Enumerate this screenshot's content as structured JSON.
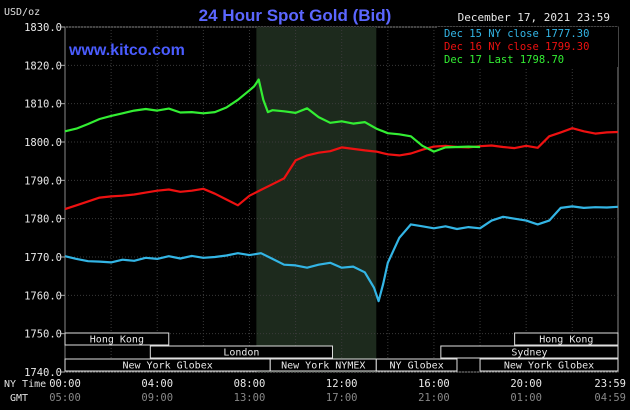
{
  "chart_data": {
    "type": "line",
    "title": "24 Hour Spot Gold (Bid)",
    "y_unit": "USD/oz",
    "watermark": "www.kitco.com",
    "date_stamp": "December 17, 2021 23:59",
    "ylim": [
      1740,
      1830
    ],
    "y_ticks": [
      "1830.0",
      "1820.0",
      "1810.0",
      "1800.0",
      "1790.0",
      "1780.0",
      "1770.0",
      "1760.0",
      "1750.0",
      "1740.0"
    ],
    "y_tick_values": [
      1830,
      1820,
      1810,
      1800,
      1790,
      1780,
      1770,
      1760,
      1750,
      1740
    ],
    "x_row_label_top": "NY Time",
    "x_row_label_bottom": "GMT",
    "x_ticks_ny": [
      "00:00",
      "04:00",
      "08:00",
      "12:00",
      "16:00",
      "20:00",
      "23:59"
    ],
    "x_ticks_gmt": [
      "05:00",
      "09:00",
      "13:00",
      "17:00",
      "21:00",
      "01:00",
      "04:59"
    ],
    "x_tick_hours": [
      0,
      4,
      8,
      12,
      16,
      20,
      23.983
    ],
    "grid": true,
    "legend_position": "top-right",
    "legend": [
      {
        "label": "Dec 15 NY close 1777.30",
        "color": "#33b5e5"
      },
      {
        "label": "Dec 16 NY close 1799.30",
        "color": "#ee1111"
      },
      {
        "label": "Dec 17 Last 1798.70",
        "color": "#33ee33"
      }
    ],
    "shaded_session_hours": [
      8.3,
      13.5
    ],
    "sessions": [
      {
        "label": "Hong Kong",
        "start": 0,
        "end": 4.5,
        "row": 0
      },
      {
        "label": "London",
        "start": 3.7,
        "end": 11.6,
        "row": 1
      },
      {
        "label": "New York Globex",
        "start": 0,
        "end": 8.9,
        "row": 2
      },
      {
        "label": "New York NYMEX",
        "start": 8.9,
        "end": 13.5,
        "row": 2
      },
      {
        "label": "NY Globex",
        "start": 13.5,
        "end": 17.0,
        "row": 2
      },
      {
        "label": "Hong Kong",
        "start": 19.5,
        "end": 23.983,
        "row": 0
      },
      {
        "label": "Sydney",
        "start": 16.3,
        "end": 23.983,
        "row": 1
      },
      {
        "label": "New York Globex",
        "start": 18.0,
        "end": 23.983,
        "row": 2
      }
    ],
    "series": [
      {
        "name": "Dec 15 NY close 1777.30",
        "color": "#33b5e5",
        "x": [
          0,
          0.5,
          1,
          1.5,
          2,
          2.5,
          3,
          3.5,
          4,
          4.5,
          5,
          5.5,
          6,
          6.5,
          7,
          7.5,
          8,
          8.5,
          9,
          9.5,
          10,
          10.5,
          11,
          11.5,
          12,
          12.5,
          13,
          13.2,
          13.4,
          13.6,
          13.8,
          14,
          14.5,
          15,
          15.5,
          16,
          16.5,
          17,
          17.5,
          18,
          18.5,
          19,
          19.5,
          20,
          20.5,
          21,
          21.5,
          22,
          22.5,
          23,
          23.5,
          23.98
        ],
        "y": [
          1770.2,
          1769.5,
          1768.9,
          1768.8,
          1768.6,
          1769.3,
          1769.0,
          1769.8,
          1769.5,
          1770.2,
          1769.6,
          1770.3,
          1769.8,
          1770.0,
          1770.4,
          1771.0,
          1770.5,
          1771.0,
          1769.5,
          1768.0,
          1767.8,
          1767.2,
          1768.0,
          1768.5,
          1767.2,
          1767.5,
          1766.0,
          1764.0,
          1762.0,
          1758.5,
          1763.0,
          1768.5,
          1775.0,
          1778.5,
          1778.0,
          1777.5,
          1778.0,
          1777.3,
          1777.8,
          1777.5,
          1779.5,
          1780.5,
          1780.0,
          1779.5,
          1778.5,
          1779.5,
          1782.8,
          1783.2,
          1782.8,
          1783.0,
          1782.9,
          1783.1
        ]
      },
      {
        "name": "Dec 16 NY close 1799.30",
        "color": "#ee1111",
        "x": [
          0,
          0.5,
          1,
          1.5,
          2,
          2.5,
          3,
          3.5,
          4,
          4.5,
          5,
          5.5,
          6,
          6.5,
          7,
          7.5,
          8,
          8.5,
          9,
          9.5,
          10,
          10.5,
          11,
          11.5,
          12,
          12.5,
          13,
          13.5,
          14,
          14.5,
          15,
          15.5,
          16,
          16.5,
          17,
          17.5,
          18,
          18.5,
          19,
          19.5,
          20,
          20.5,
          21,
          21.5,
          22,
          22.5,
          23,
          23.5,
          23.98
        ],
        "y": [
          1782.5,
          1783.5,
          1784.5,
          1785.5,
          1785.8,
          1786.0,
          1786.3,
          1786.8,
          1787.3,
          1787.6,
          1787.0,
          1787.3,
          1787.8,
          1786.5,
          1785.0,
          1783.5,
          1786.0,
          1787.5,
          1789.0,
          1790.5,
          1795.2,
          1796.5,
          1797.2,
          1797.6,
          1798.6,
          1798.2,
          1797.8,
          1797.5,
          1796.8,
          1796.5,
          1797.0,
          1798.0,
          1798.8,
          1799.0,
          1798.7,
          1798.6,
          1798.9,
          1799.1,
          1798.7,
          1798.4,
          1799.0,
          1798.5,
          1801.5,
          1802.5,
          1803.6,
          1802.8,
          1802.2,
          1802.5,
          1802.6
        ]
      },
      {
        "name": "Dec 17 Last 1798.70",
        "color": "#33ee33",
        "x": [
          0,
          0.5,
          1,
          1.5,
          2,
          2.5,
          3,
          3.5,
          4,
          4.5,
          5,
          5.5,
          6,
          6.5,
          7,
          7.5,
          8,
          8.2,
          8.4,
          8.6,
          8.8,
          9,
          9.5,
          10,
          10.5,
          11,
          11.5,
          12,
          12.5,
          13,
          13.5,
          14,
          14.5,
          15,
          15.5,
          16,
          16.5,
          17,
          17.5,
          18
        ],
        "y": [
          1802.8,
          1803.5,
          1804.7,
          1806.0,
          1806.8,
          1807.5,
          1808.2,
          1808.6,
          1808.2,
          1808.7,
          1807.7,
          1807.8,
          1807.5,
          1807.8,
          1809.0,
          1811.0,
          1813.5,
          1814.5,
          1816.3,
          1811.0,
          1807.8,
          1808.3,
          1808.0,
          1807.6,
          1808.8,
          1806.5,
          1805.0,
          1805.4,
          1804.8,
          1805.2,
          1803.5,
          1802.3,
          1802.0,
          1801.5,
          1799.0,
          1797.5,
          1798.6,
          1798.7,
          1798.8,
          1798.7
        ]
      }
    ]
  }
}
